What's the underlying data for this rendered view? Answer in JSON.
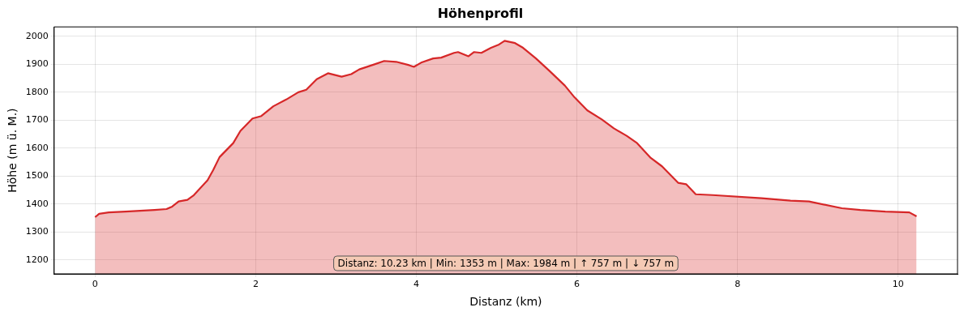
{
  "chart_data": {
    "type": "area",
    "title": "Höhenprofil",
    "xlabel": "Distanz (km)",
    "ylabel": "Höhe (m ü. M.)",
    "x": [
      0,
      0.05,
      0.17,
      0.38,
      0.74,
      0.89,
      0.96,
      1.04,
      1.15,
      1.23,
      1.4,
      1.47,
      1.55,
      1.72,
      1.81,
      1.96,
      2.07,
      2.22,
      2.38,
      2.53,
      2.63,
      2.76,
      2.9,
      3.07,
      3.19,
      3.29,
      3.48,
      3.6,
      3.75,
      3.91,
      3.97,
      4.06,
      4.21,
      4.31,
      4.47,
      4.52,
      4.65,
      4.72,
      4.81,
      4.93,
      5.03,
      5.1,
      5.23,
      5.33,
      5.49,
      5.66,
      5.85,
      5.97,
      6.13,
      6.31,
      6.46,
      6.62,
      6.75,
      6.92,
      7.06,
      7.26,
      7.36,
      7.48,
      7.69,
      8.3,
      8.66,
      8.89,
      9.3,
      9.53,
      9.84,
      10.14,
      10.23
    ],
    "series": [
      {
        "color": "#d62728",
        "values": [
          1353,
          1365,
          1370,
          1373,
          1379,
          1382,
          1391,
          1409,
          1415,
          1432,
          1485,
          1521,
          1568,
          1618,
          1662,
          1706,
          1715,
          1750,
          1774,
          1800,
          1809,
          1847,
          1868,
          1856,
          1865,
          1882,
          1900,
          1912,
          1909,
          1897,
          1891,
          1906,
          1921,
          1924,
          1941,
          1944,
          1929,
          1944,
          1941,
          1959,
          1971,
          1984,
          1976,
          1959,
          1921,
          1876,
          1824,
          1782,
          1735,
          1703,
          1671,
          1644,
          1618,
          1565,
          1535,
          1476,
          1471,
          1435,
          1432,
          1421,
          1412,
          1409,
          1385,
          1379,
          1373,
          1370,
          1356
        ]
      }
    ],
    "xlim": [
      -0.51,
      10.74
    ],
    "ylim": [
      1150,
      2034
    ],
    "xticks": [
      0,
      2,
      4,
      6,
      8,
      10
    ],
    "yticks": [
      1200,
      1300,
      1400,
      1500,
      1600,
      1700,
      1800,
      1900,
      2000
    ],
    "grid": true,
    "legend": false,
    "annotations": [
      "Distanz: 10.23 km | Min: 1353 m | Max: 1984 m | ↑ 757 m | ↓ 757 m"
    ]
  }
}
